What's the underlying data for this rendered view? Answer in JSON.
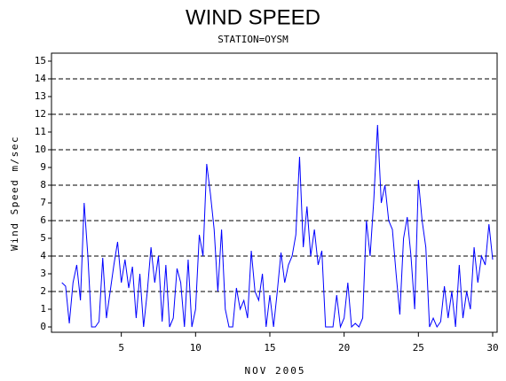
{
  "chart_data": {
    "type": "line",
    "title": "WIND SPEED",
    "subtitle": "STATION=OYSM",
    "x_label": "NOV 2005",
    "y_label": "Wind Speed m/sec",
    "xlim": [
      0.3,
      30.3
    ],
    "ylim": [
      -0.3,
      15.45
    ],
    "xticks": [
      5,
      10,
      15,
      20,
      25,
      30
    ],
    "yticks": [
      0,
      1,
      2,
      3,
      4,
      5,
      6,
      7,
      8,
      9,
      10,
      11,
      12,
      13,
      14,
      15
    ],
    "grid_lines": [
      2,
      4,
      6,
      8,
      10,
      12,
      14
    ],
    "series": [
      {
        "color": "#0000ff",
        "x": [
          1,
          1.25,
          1.5,
          1.75,
          2,
          2.25,
          2.5,
          2.75,
          3,
          3.25,
          3.5,
          3.75,
          4,
          4.25,
          4.5,
          4.75,
          5,
          5.25,
          5.5,
          5.75,
          6,
          6.25,
          6.5,
          6.75,
          7,
          7.25,
          7.5,
          7.75,
          8,
          8.25,
          8.5,
          8.75,
          9,
          9.25,
          9.5,
          9.75,
          10,
          10.25,
          10.5,
          10.75,
          11,
          11.25,
          11.5,
          11.75,
          12,
          12.25,
          12.5,
          12.75,
          13,
          13.25,
          13.5,
          13.75,
          14,
          14.25,
          14.5,
          14.75,
          15,
          15.25,
          15.5,
          15.75,
          16,
          16.25,
          16.5,
          16.75,
          17,
          17.25,
          17.5,
          17.75,
          18,
          18.25,
          18.5,
          18.75,
          19,
          19.25,
          19.5,
          19.75,
          20,
          20.25,
          20.5,
          20.75,
          21,
          21.25,
          21.5,
          21.75,
          22,
          22.25,
          22.5,
          22.75,
          23,
          23.25,
          23.5,
          23.75,
          24,
          24.25,
          24.5,
          24.75,
          25,
          25.25,
          25.5,
          25.75,
          26,
          26.25,
          26.5,
          26.75,
          27,
          27.25,
          27.5,
          27.75,
          28,
          28.25,
          28.5,
          28.75,
          29,
          29.25,
          29.5,
          29.75,
          30
        ],
        "values": [
          2.5,
          2.3,
          0.2,
          2.5,
          3.5,
          1.5,
          7.0,
          4,
          0,
          0,
          0.3,
          3.9,
          0.5,
          2.0,
          3.5,
          4.8,
          2.5,
          3.8,
          2.2,
          3.4,
          0.5,
          3,
          0,
          2,
          4.5,
          2.5,
          4,
          0.3,
          3.5,
          0,
          0.5,
          3.3,
          2.5,
          0,
          3.8,
          0,
          1,
          5.2,
          4,
          9.2,
          7.5,
          5.5,
          2,
          5.5,
          1,
          0,
          0,
          2.2,
          1,
          1.5,
          0.5,
          4.3,
          2,
          1.5,
          3,
          0,
          1.8,
          0,
          2,
          4.2,
          2.5,
          3.5,
          4,
          5.2,
          9.6,
          4.5,
          6.8,
          4,
          5.5,
          3.5,
          4.3,
          0,
          0,
          0,
          1.8,
          0,
          0.5,
          2.5,
          0,
          0.2,
          0,
          0.5,
          6,
          4,
          7.2,
          11.4,
          7,
          8,
          6,
          5.5,
          3,
          0.7,
          5,
          6.2,
          4,
          1,
          8.3,
          6,
          4.5,
          0,
          0.5,
          0,
          0.3,
          2.3,
          0.5,
          2,
          0,
          3.5,
          0.5,
          2,
          1,
          4.5,
          2.5,
          4,
          3.5,
          5.8,
          3.8
        ]
      }
    ]
  }
}
